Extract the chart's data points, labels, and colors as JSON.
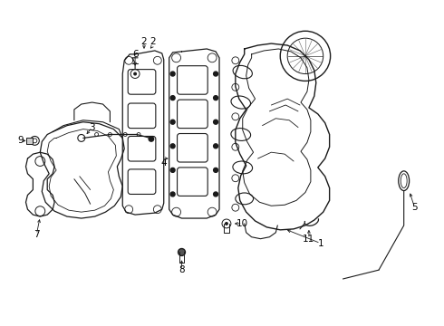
{
  "background_color": "#ffffff",
  "line_color": "#1a1a1a",
  "text_color": "#000000",
  "figsize": [
    4.9,
    3.6
  ],
  "dpi": 100,
  "xlim": [
    0,
    490
  ],
  "ylim": [
    0,
    360
  ]
}
